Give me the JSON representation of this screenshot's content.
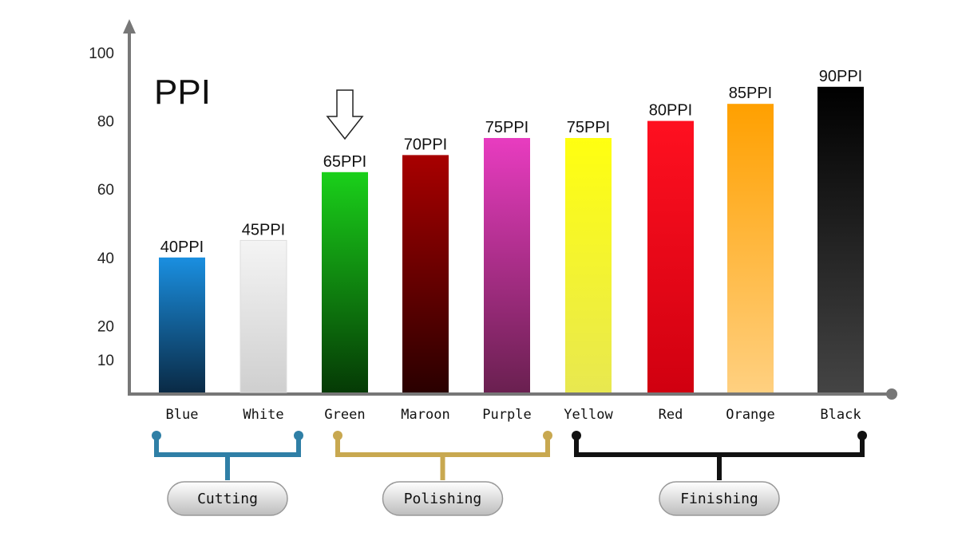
{
  "chart_data": {
    "type": "bar",
    "title": "PPI",
    "categories": [
      "Blue",
      "White",
      "Green",
      "Maroon",
      "Purple",
      "Yellow",
      "Red",
      "Orange",
      "Black"
    ],
    "values": [
      40,
      45,
      65,
      70,
      75,
      75,
      80,
      85,
      90
    ],
    "data_labels": [
      "40PPI",
      "45PPI",
      "65PPI",
      "70PPI",
      "75PPI",
      "75PPI",
      "80PPI",
      "85PPI",
      "90PPI"
    ],
    "bar_colors": [
      [
        "#1a8fe0",
        "#0a2a45"
      ],
      [
        "#f4f4f4",
        "#cfcfcf"
      ],
      [
        "#1ad01a",
        "#053a05"
      ],
      [
        "#a80000",
        "#2a0000"
      ],
      [
        "#e83cc0",
        "#6a2050"
      ],
      [
        "#ffff10",
        "#e8e850"
      ],
      [
        "#ff1020",
        "#d00010"
      ],
      [
        "#ffa000",
        "#ffd080"
      ],
      [
        "#000000",
        "#444444"
      ]
    ],
    "yticks": [
      10,
      20,
      40,
      60,
      80,
      100
    ],
    "ylim": [
      0,
      100
    ],
    "grid": false,
    "highlight_arrow_category": "Green",
    "groups": [
      {
        "label": "Cutting",
        "from": "Blue",
        "to": "White",
        "color": "#2f7fa6"
      },
      {
        "label": "Polishing",
        "from": "Green",
        "to": "Purple",
        "color": "#c8a850"
      },
      {
        "label": "Finishing",
        "from": "Yellow",
        "to": "Black",
        "color": "#111111"
      }
    ]
  }
}
